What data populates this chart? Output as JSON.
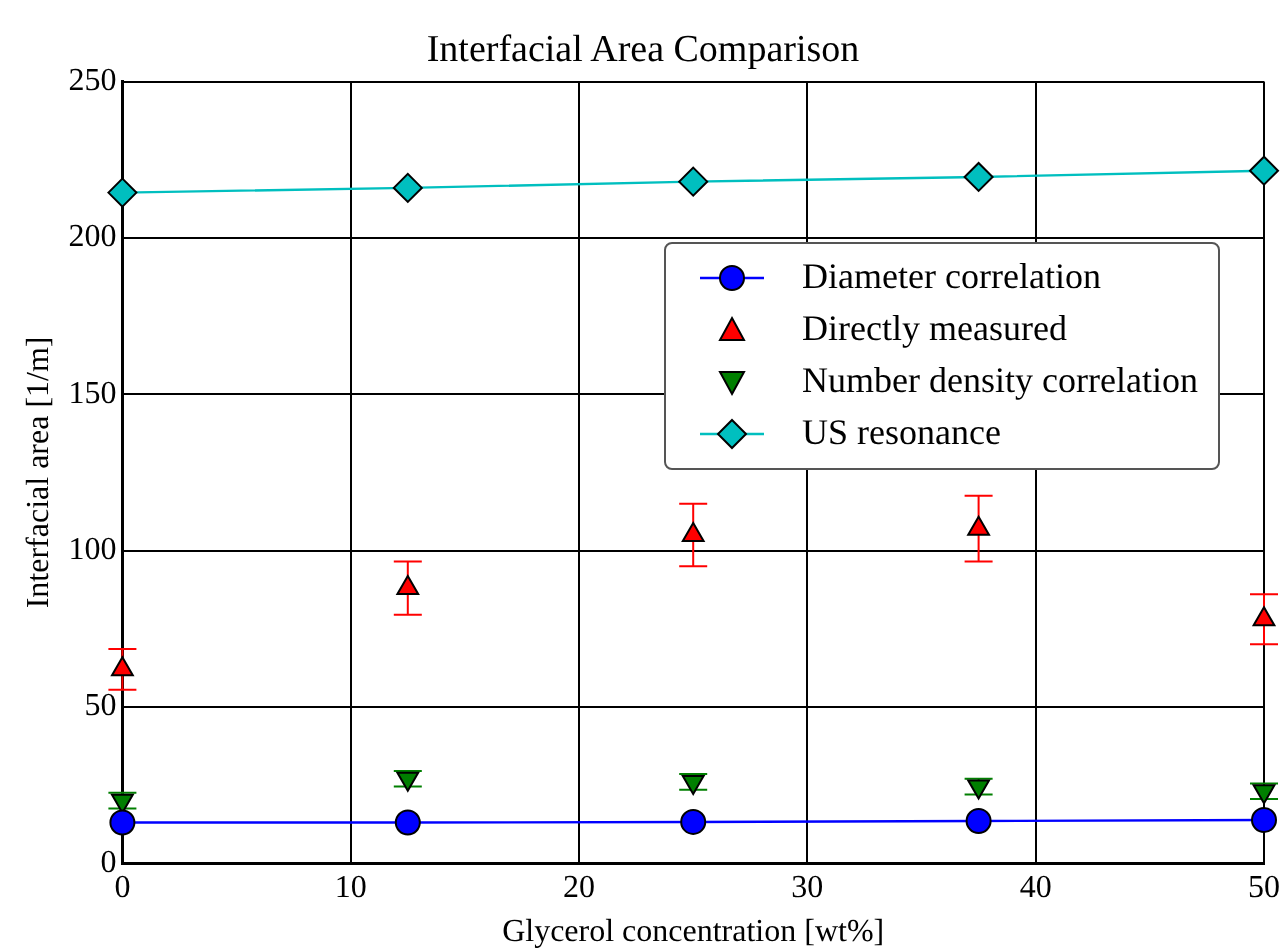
{
  "chart_data": {
    "type": "line",
    "title": "Interfacial Area Comparison",
    "xlabel": "Glycerol concentration [wt%]",
    "ylabel": "Interfacial area [1/m]",
    "x": [
      0,
      12.5,
      25,
      37.5,
      50
    ],
    "series": [
      {
        "name": "Diameter correlation",
        "color": "#0000ff",
        "marker": "circle",
        "line_style": "solid",
        "values": [
          13,
          13,
          13.2,
          13.5,
          13.8
        ]
      },
      {
        "name": "Directly measured",
        "type": "scatter",
        "color": "#ff0000",
        "marker": "triangle",
        "values": [
          62,
          88,
          105,
          107,
          78
        ],
        "errors": [
          6.5,
          8.5,
          10,
          10.5,
          8
        ]
      },
      {
        "name": "Number density correlation",
        "type": "scatter",
        "color": "#007f00",
        "marker": "triangle-down",
        "values": [
          20,
          27,
          26,
          24.5,
          23
        ],
        "errors": [
          2.5,
          2.5,
          2.5,
          2.5,
          2.5
        ]
      },
      {
        "name": "US resonance",
        "color": "#00bfbf",
        "marker": "diamond",
        "line_style": "solid",
        "values": [
          214.5,
          216,
          218,
          219.5,
          221.5
        ]
      }
    ],
    "xlim": [
      0,
      50
    ],
    "xticks": [
      0,
      10,
      20,
      30,
      40,
      50
    ],
    "ylim": [
      0,
      250
    ],
    "yticks": [
      0,
      50,
      100,
      150,
      200,
      250
    ],
    "grid": true,
    "legend": "right"
  }
}
